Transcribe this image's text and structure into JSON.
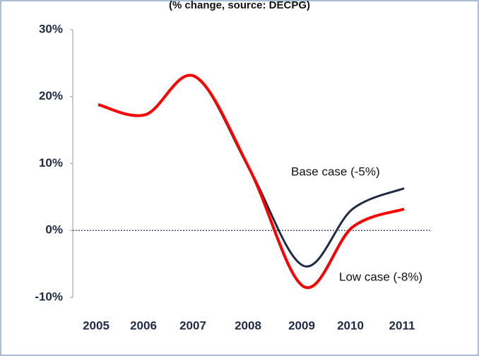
{
  "chart_data": {
    "type": "line",
    "title": "(% change, source: DECPG)",
    "categories": [
      "2005",
      "2006",
      "2007",
      "2008",
      "2009",
      "2010",
      "2011"
    ],
    "series": [
      {
        "name": "Base case (-5%)",
        "color": "#1f2a44",
        "values": [
          18.8,
          17.3,
          23.0,
          9.0,
          -5.3,
          3.2,
          6.3
        ]
      },
      {
        "name": "Low case (-8%)",
        "color": "#ff0000",
        "values": [
          18.8,
          17.3,
          23.0,
          9.0,
          -8.4,
          0.5,
          3.2
        ]
      }
    ],
    "ylim": [
      -10,
      30
    ],
    "yticks": [
      {
        "value": -10,
        "label": "-10%"
      },
      {
        "value": 0,
        "label": "0%"
      },
      {
        "value": 10,
        "label": "10%"
      },
      {
        "value": 20,
        "label": "20%"
      },
      {
        "value": 30,
        "label": "30%"
      }
    ],
    "grid": false,
    "zero_line": true
  }
}
